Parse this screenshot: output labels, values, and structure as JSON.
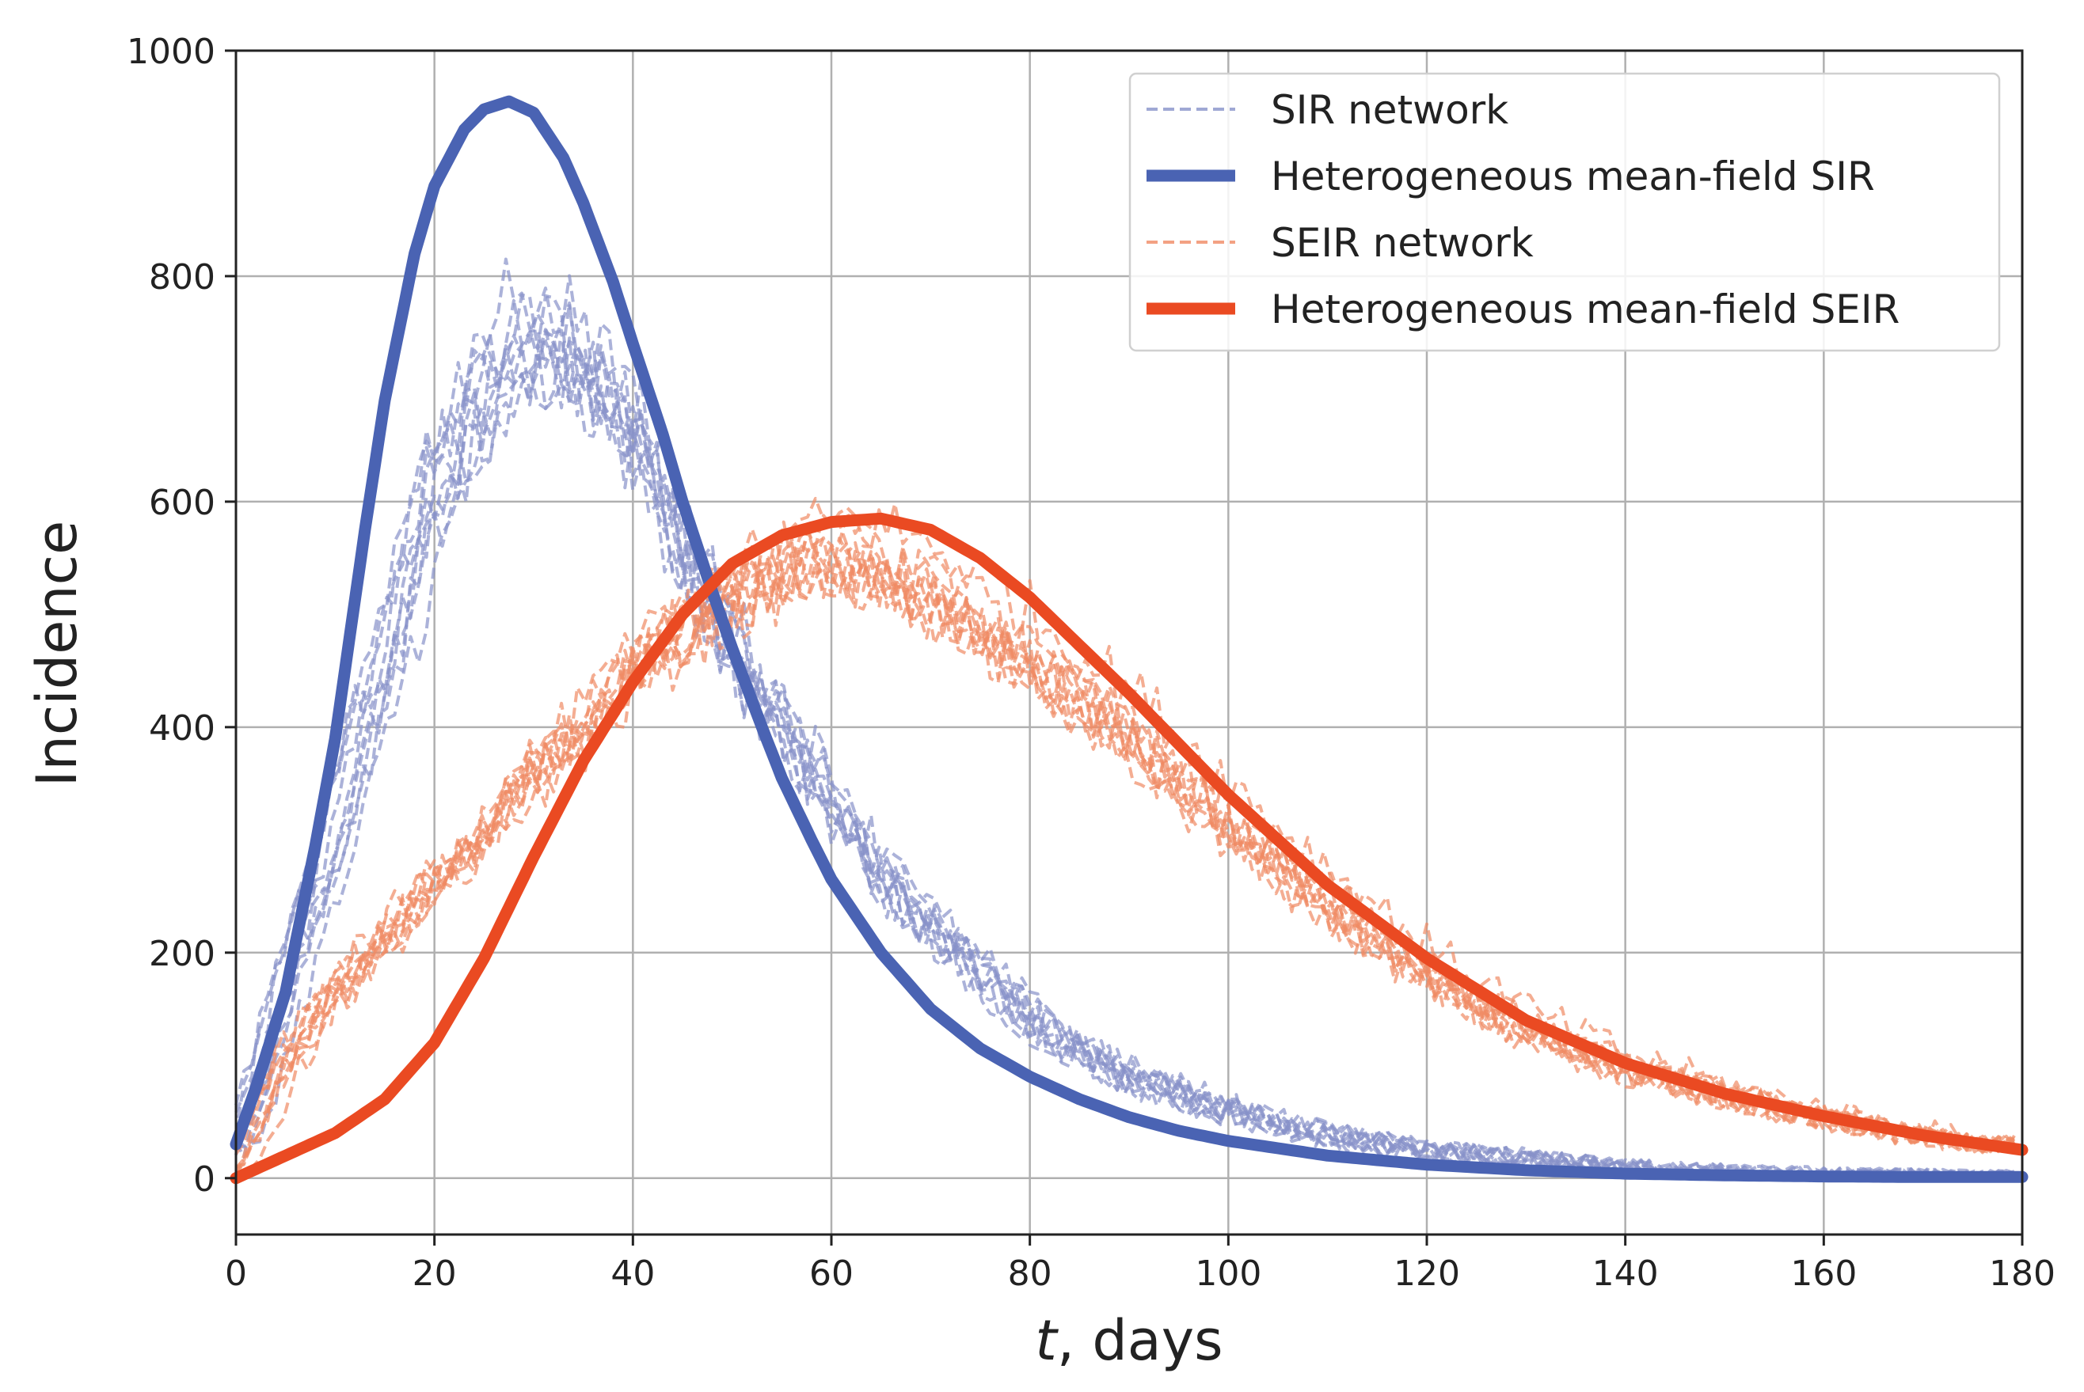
{
  "chart_data": {
    "type": "line",
    "title": "",
    "xlabel_var": "t",
    "xlabel_rest": ", days",
    "ylabel": "Incidence",
    "xlim": [
      0,
      180
    ],
    "ylim": [
      -50,
      1000
    ],
    "xticks": [
      0,
      20,
      40,
      60,
      80,
      100,
      120,
      140,
      160,
      180
    ],
    "yticks": [
      0,
      200,
      400,
      600,
      800,
      1000
    ],
    "grid": true,
    "legend_position": "top-right",
    "series": [
      {
        "name": "SIR network",
        "style": "dashed",
        "color": "#8792c9",
        "runs": 10,
        "noise": 30,
        "x": [
          0,
          5,
          10,
          15,
          20,
          25,
          28,
          32,
          36,
          40,
          45,
          50,
          55,
          60,
          65,
          70,
          80,
          90,
          100,
          110,
          120,
          140,
          160,
          180
        ],
        "values": [
          25,
          170,
          300,
          470,
          610,
          700,
          735,
          740,
          715,
          660,
          560,
          470,
          400,
          330,
          270,
          220,
          140,
          90,
          60,
          38,
          25,
          10,
          4,
          1
        ]
      },
      {
        "name": "Heterogeneous mean-field SIR",
        "style": "solid",
        "color": "#4a63b3",
        "x": [
          0,
          2,
          5,
          8,
          10,
          13,
          15,
          18,
          20,
          23,
          25,
          27.5,
          30,
          33,
          35,
          38,
          40,
          43,
          45,
          48,
          50,
          53,
          55,
          58,
          60,
          65,
          70,
          75,
          80,
          85,
          90,
          95,
          100,
          110,
          120,
          130,
          140,
          150,
          160,
          170,
          180
        ],
        "values": [
          30,
          80,
          165,
          295,
          390,
          575,
          690,
          820,
          880,
          930,
          948,
          955,
          945,
          905,
          865,
          795,
          740,
          660,
          600,
          520,
          470,
          400,
          355,
          300,
          265,
          200,
          150,
          115,
          90,
          70,
          54,
          42,
          33,
          20,
          12,
          7,
          4,
          2.5,
          1.5,
          1,
          1
        ]
      },
      {
        "name": "SEIR network",
        "style": "dashed",
        "color": "#f08a64",
        "runs": 10,
        "noise": 25,
        "x": [
          0,
          5,
          10,
          15,
          20,
          25,
          30,
          35,
          40,
          45,
          50,
          55,
          60,
          65,
          70,
          75,
          80,
          90,
          100,
          110,
          120,
          130,
          140,
          150,
          160,
          170,
          180
        ],
        "values": [
          5,
          100,
          165,
          210,
          260,
          300,
          360,
          400,
          450,
          490,
          520,
          545,
          555,
          545,
          525,
          500,
          465,
          400,
          320,
          250,
          185,
          135,
          100,
          75,
          55,
          38,
          28
        ]
      },
      {
        "name": "Heterogeneous mean-field SEIR",
        "style": "solid",
        "color": "#ea4a22",
        "x": [
          0,
          5,
          10,
          15,
          20,
          25,
          30,
          35,
          40,
          45,
          50,
          55,
          60,
          65,
          70,
          75,
          80,
          90,
          100,
          110,
          120,
          130,
          140,
          150,
          160,
          170,
          180
        ],
        "values": [
          0,
          20,
          40,
          70,
          120,
          195,
          285,
          370,
          440,
          500,
          545,
          570,
          582,
          585,
          575,
          550,
          515,
          430,
          340,
          260,
          195,
          140,
          102,
          75,
          55,
          38,
          25
        ]
      }
    ]
  },
  "legend": {
    "items": [
      {
        "label": "SIR network",
        "style": "dashed",
        "color": "#8792c9"
      },
      {
        "label": "Heterogeneous mean-field SIR",
        "style": "solid",
        "color": "#4a63b3"
      },
      {
        "label": "SEIR network",
        "style": "dashed",
        "color": "#f08a64"
      },
      {
        "label": "Heterogeneous mean-field SEIR",
        "style": "solid",
        "color": "#ea4a22"
      }
    ]
  }
}
